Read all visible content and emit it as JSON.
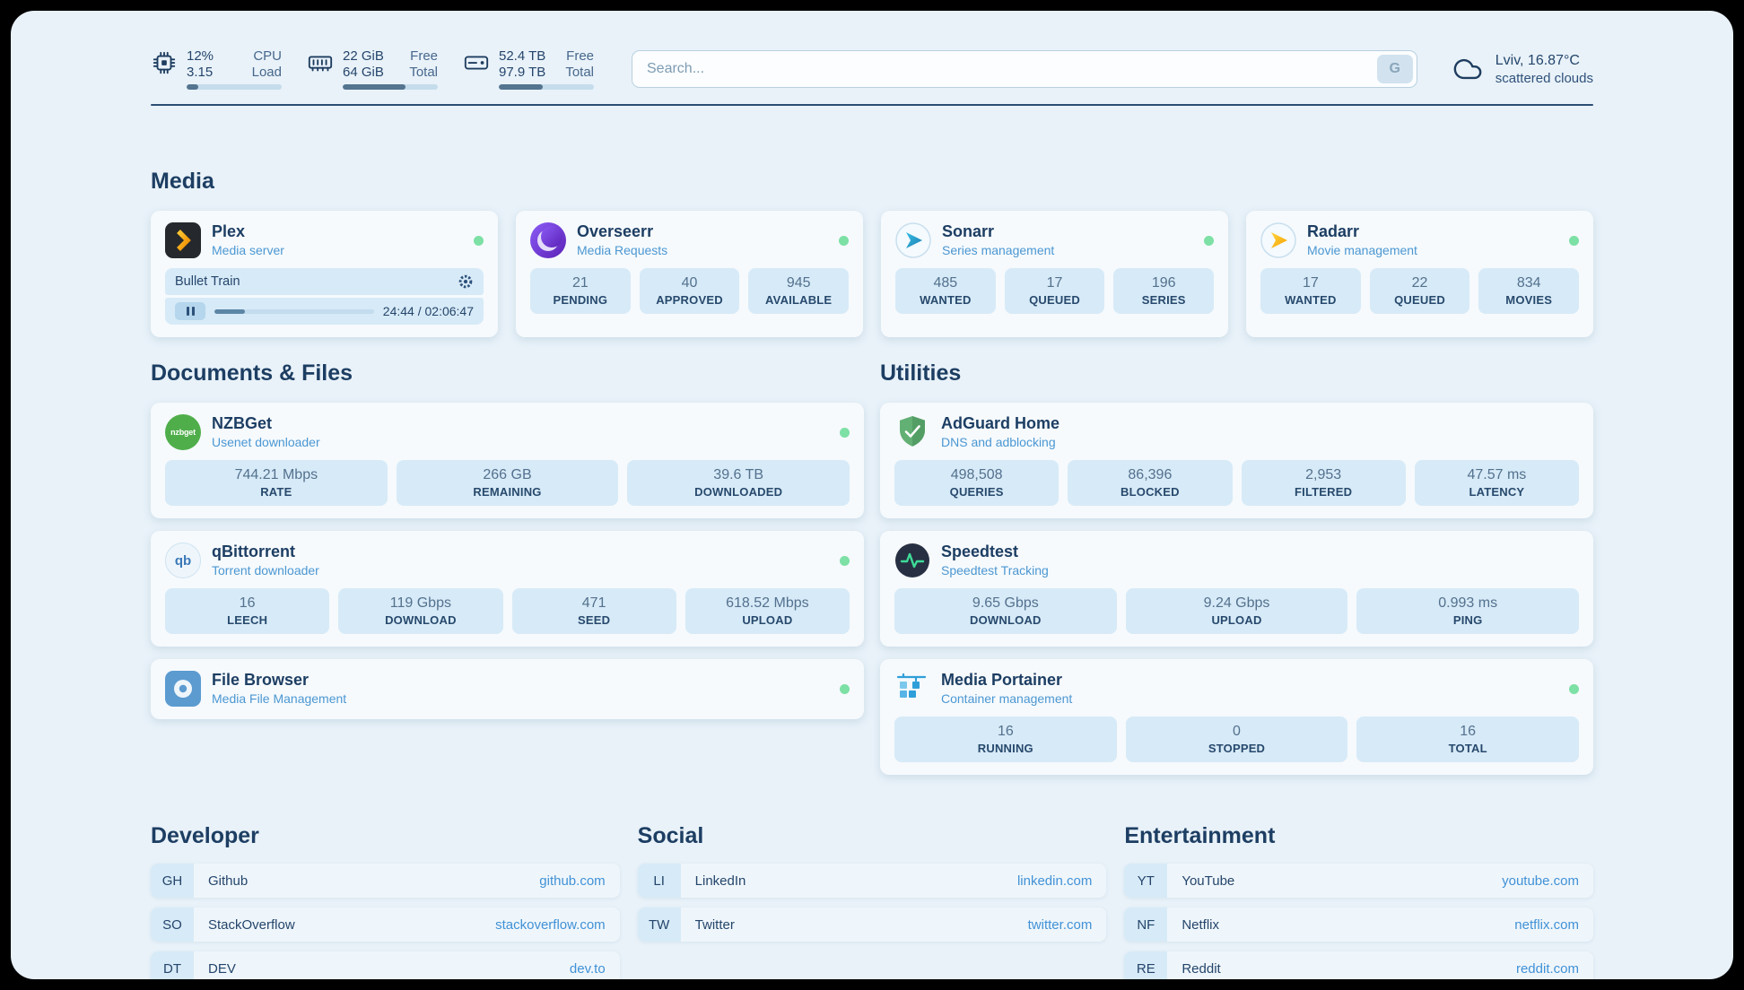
{
  "topbar": {
    "cpu": {
      "value1": "12%",
      "value2": "3.15",
      "label1": "CPU",
      "label2": "Load",
      "bar_percent": 12
    },
    "memory": {
      "value1": "22 GiB",
      "value2": "64 GiB",
      "label1": "Free",
      "label2": "Total",
      "bar_percent": 66
    },
    "disk": {
      "value1": "52.4 TB",
      "value2": "97.9 TB",
      "label1": "Free",
      "label2": "Total",
      "bar_percent": 46
    },
    "search": {
      "placeholder": "Search...",
      "button_label": "G"
    },
    "weather": {
      "location": "Lviv, 16.87°C",
      "condition": "scattered clouds"
    }
  },
  "sections": {
    "media": {
      "title": "Media",
      "plex": {
        "title": "Plex",
        "subtitle": "Media server",
        "status": "online",
        "player": {
          "track": "Bullet Train",
          "time": "24:44 / 02:06:47",
          "progress_percent": 19
        }
      },
      "overseerr": {
        "title": "Overseerr",
        "subtitle": "Media Requests",
        "status": "online",
        "stats": [
          {
            "value": "21",
            "label": "PENDING"
          },
          {
            "value": "40",
            "label": "APPROVED"
          },
          {
            "value": "945",
            "label": "AVAILABLE"
          }
        ]
      },
      "sonarr": {
        "title": "Sonarr",
        "subtitle": "Series management",
        "status": "online",
        "stats": [
          {
            "value": "485",
            "label": "WANTED"
          },
          {
            "value": "17",
            "label": "QUEUED"
          },
          {
            "value": "196",
            "label": "SERIES"
          }
        ]
      },
      "radarr": {
        "title": "Radarr",
        "subtitle": "Movie management",
        "status": "online",
        "stats": [
          {
            "value": "17",
            "label": "WANTED"
          },
          {
            "value": "22",
            "label": "QUEUED"
          },
          {
            "value": "834",
            "label": "MOVIES"
          }
        ]
      }
    },
    "documents": {
      "title": "Documents & Files",
      "nzbget": {
        "title": "NZBGet",
        "subtitle": "Usenet downloader",
        "status": "online",
        "icon_label": "nzbget",
        "stats": [
          {
            "value": "744.21 Mbps",
            "label": "RATE"
          },
          {
            "value": "266 GB",
            "label": "REMAINING"
          },
          {
            "value": "39.6 TB",
            "label": "DOWNLOADED"
          }
        ]
      },
      "qbittorrent": {
        "title": "qBittorrent",
        "subtitle": "Torrent downloader",
        "status": "online",
        "icon_label": "qb",
        "stats": [
          {
            "value": "16",
            "label": "LEECH"
          },
          {
            "value": "119 Gbps",
            "label": "DOWNLOAD"
          },
          {
            "value": "471",
            "label": "SEED"
          },
          {
            "value": "618.52 Mbps",
            "label": "UPLOAD"
          }
        ]
      },
      "filebrowser": {
        "title": "File Browser",
        "subtitle": "Media File Management",
        "status": "online"
      }
    },
    "utilities": {
      "title": "Utilities",
      "adguard": {
        "title": "AdGuard Home",
        "subtitle": "DNS and adblocking",
        "stats": [
          {
            "value": "498,508",
            "label": "QUERIES"
          },
          {
            "value": "86,396",
            "label": "BLOCKED"
          },
          {
            "value": "2,953",
            "label": "FILTERED"
          },
          {
            "value": "47.57 ms",
            "label": "LATENCY"
          }
        ]
      },
      "speedtest": {
        "title": "Speedtest",
        "subtitle": "Speedtest Tracking",
        "stats": [
          {
            "value": "9.65 Gbps",
            "label": "DOWNLOAD"
          },
          {
            "value": "9.24 Gbps",
            "label": "UPLOAD"
          },
          {
            "value": "0.993 ms",
            "label": "PING"
          }
        ]
      },
      "portainer": {
        "title": "Media Portainer",
        "subtitle": "Container management",
        "status": "online",
        "stats": [
          {
            "value": "16",
            "label": "RUNNING"
          },
          {
            "value": "0",
            "label": "STOPPED"
          },
          {
            "value": "16",
            "label": "TOTAL"
          }
        ]
      }
    }
  },
  "bookmarks": {
    "developer": {
      "title": "Developer",
      "items": [
        {
          "abbr": "GH",
          "name": "Github",
          "link": "github.com"
        },
        {
          "abbr": "SO",
          "name": "StackOverflow",
          "link": "stackoverflow.com"
        },
        {
          "abbr": "DT",
          "name": "DEV",
          "link": "dev.to"
        }
      ]
    },
    "social": {
      "title": "Social",
      "items": [
        {
          "abbr": "LI",
          "name": "LinkedIn",
          "link": "linkedin.com"
        },
        {
          "abbr": "TW",
          "name": "Twitter",
          "link": "twitter.com"
        }
      ]
    },
    "entertainment": {
      "title": "Entertainment",
      "items": [
        {
          "abbr": "YT",
          "name": "YouTube",
          "link": "youtube.com"
        },
        {
          "abbr": "NF",
          "name": "Netflix",
          "link": "netflix.com"
        },
        {
          "abbr": "RE",
          "name": "Reddit",
          "link": "reddit.com"
        }
      ]
    }
  },
  "colors": {
    "accent_blue": "#4b97d2",
    "navy": "#1d3e63",
    "status_online": "#7de0a5",
    "stat_bg": "#d7eaf7"
  }
}
